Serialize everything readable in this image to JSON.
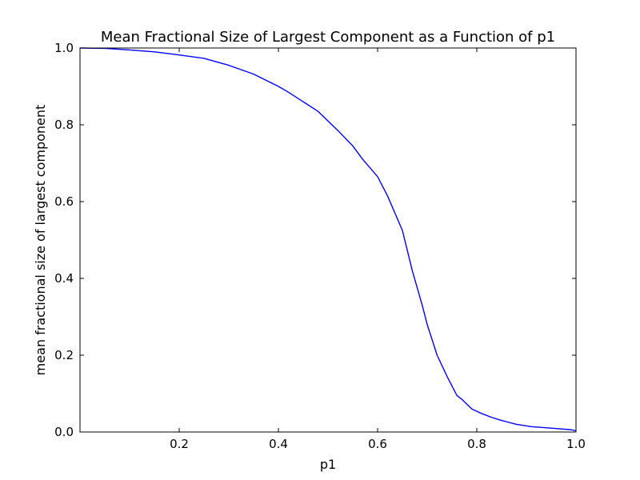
{
  "chart_data": {
    "type": "line",
    "title": "Mean Fractional Size of Largest Component as a Function of p1",
    "xlabel": "p1",
    "ylabel": "mean fractional size of largest component",
    "xlim": [
      0.0,
      1.0
    ],
    "ylim": [
      0.0,
      1.0
    ],
    "xticks": [
      0.2,
      0.4,
      0.6,
      0.8,
      1.0
    ],
    "xtick_labels": [
      "0.2",
      "0.4",
      "0.6",
      "0.8",
      "1.0"
    ],
    "yticks": [
      0.0,
      0.2,
      0.4,
      0.6,
      0.8,
      1.0
    ],
    "ytick_labels": [
      "0.0",
      "0.2",
      "0.4",
      "0.6",
      "0.8",
      "1.0"
    ],
    "grid": false,
    "legend": "none",
    "series": [
      {
        "color": "#0000ff",
        "x": [
          0.0,
          0.05,
          0.1,
          0.15,
          0.2,
          0.25,
          0.3,
          0.35,
          0.4,
          0.42,
          0.45,
          0.48,
          0.5,
          0.52,
          0.55,
          0.57,
          0.6,
          0.62,
          0.65,
          0.67,
          0.69,
          0.7,
          0.72,
          0.74,
          0.76,
          0.77,
          0.79,
          0.81,
          0.83,
          0.85,
          0.88,
          0.91,
          0.95,
          0.99,
          1.0
        ],
        "y": [
          1.0,
          0.999,
          0.995,
          0.99,
          0.982,
          0.973,
          0.955,
          0.932,
          0.9,
          0.885,
          0.86,
          0.835,
          0.81,
          0.785,
          0.745,
          0.71,
          0.665,
          0.615,
          0.525,
          0.42,
          0.33,
          0.28,
          0.2,
          0.145,
          0.095,
          0.085,
          0.06,
          0.048,
          0.038,
          0.03,
          0.02,
          0.014,
          0.01,
          0.006,
          0.003
        ]
      }
    ]
  }
}
